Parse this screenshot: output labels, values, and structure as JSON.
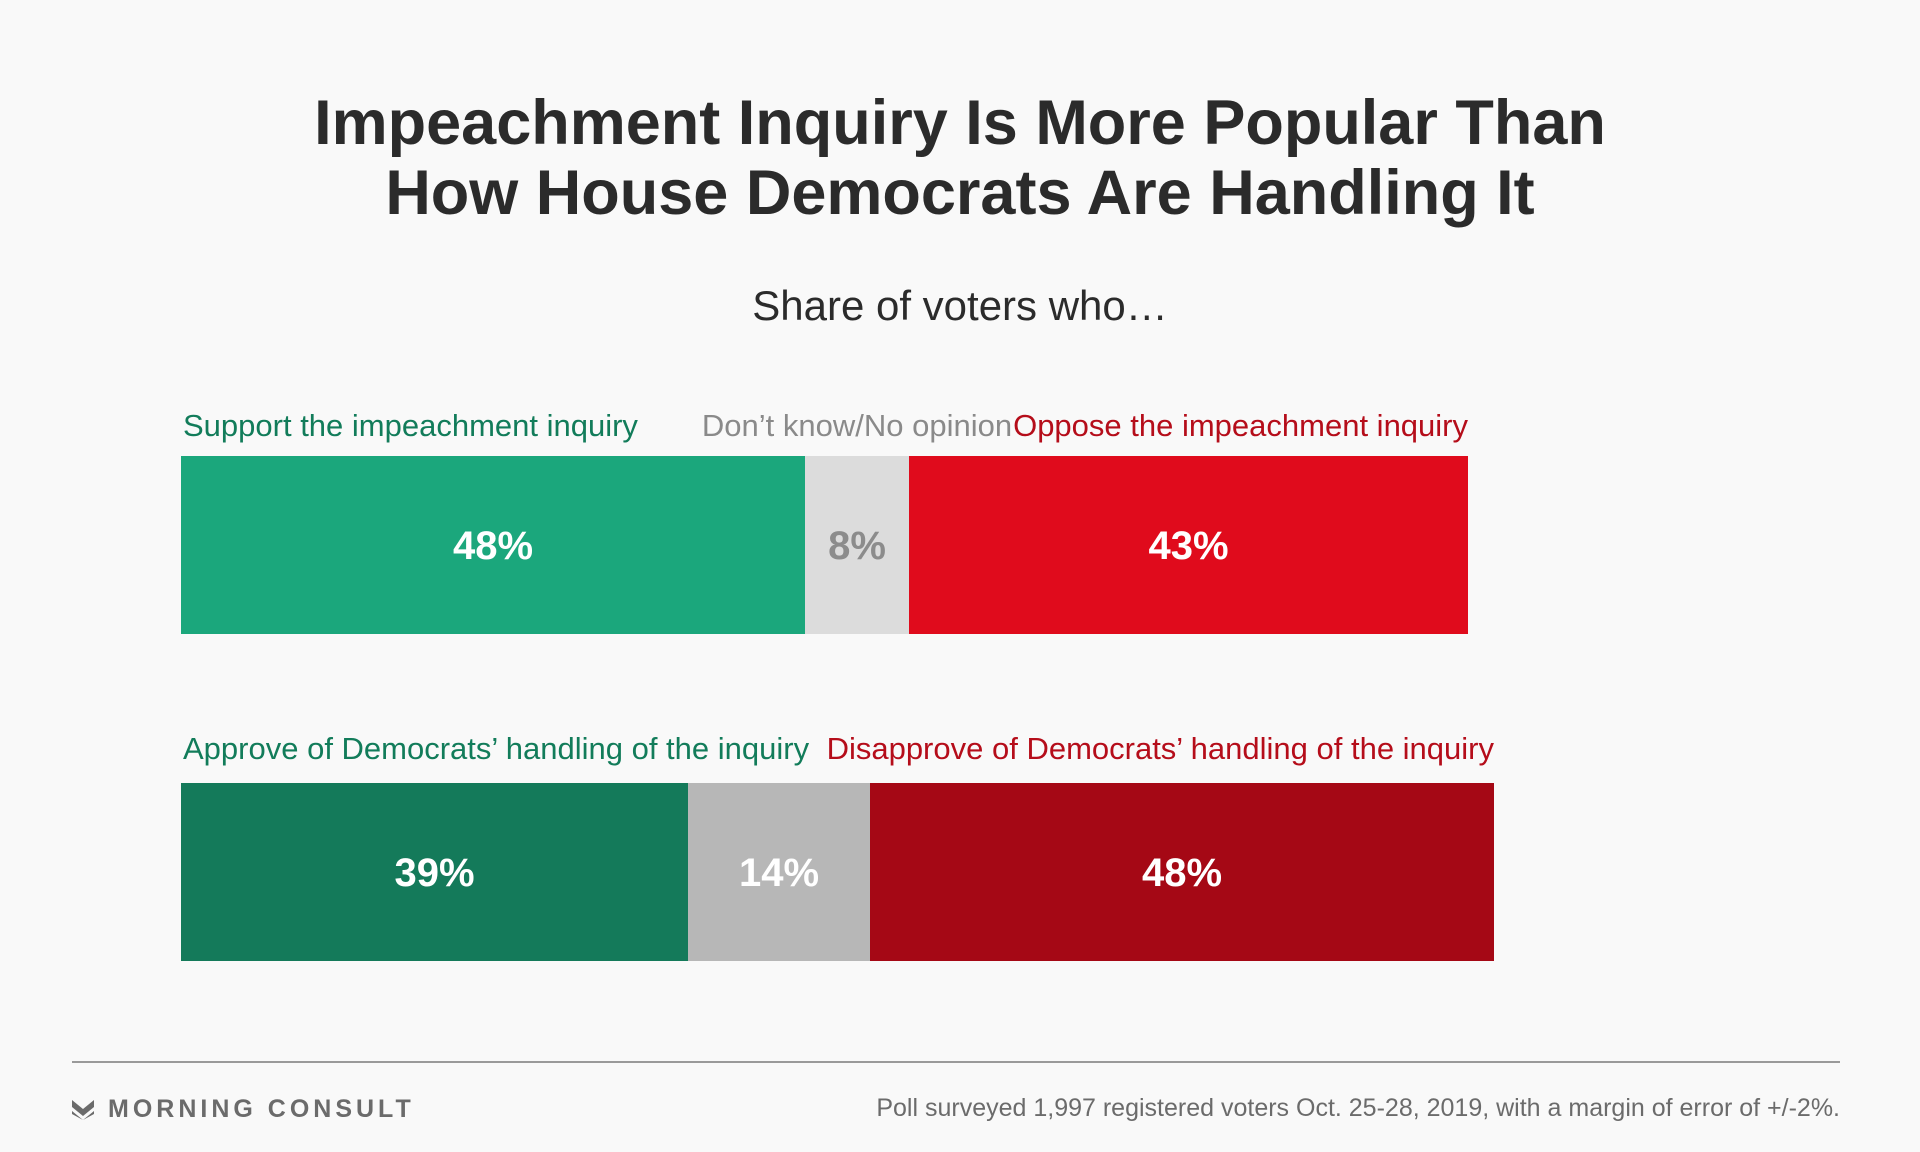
{
  "title_lines": [
    "Impeachment Inquiry Is More Popular Than",
    "How House Democrats Are Handling It"
  ],
  "subtitle": "Share of voters who…",
  "colors": {
    "support": "#1ba77c",
    "support_dk": "#147a5a",
    "dk_light": "#dcdcdc",
    "dk_dark": "#b7b7b7",
    "oppose": "#e00b1c",
    "oppose_dk": "#a50815",
    "label_green": "#127c5a",
    "label_red": "#b50d1a",
    "label_gray": "#8a8a8a",
    "dk_text_light": "#8c8c8c"
  },
  "chart_data": {
    "type": "bar",
    "orientation": "horizontal-stacked",
    "categories": [
      "Impeachment inquiry",
      "Democrats' handling of the inquiry"
    ],
    "series": [
      {
        "values": [
          48,
          39
        ],
        "value_labels": [
          "48%",
          "39%"
        ]
      },
      {
        "values": [
          8,
          14
        ],
        "value_labels": [
          "8%",
          "14%"
        ]
      },
      {
        "values": [
          43,
          48
        ],
        "value_labels": [
          "43%",
          "48%"
        ]
      }
    ],
    "bar_labels": [
      [
        "Support the impeachment inquiry",
        "Don’t know/No opinion",
        "Oppose the impeachment inquiry"
      ],
      [
        "Approve of Democrats’ handling of the inquiry",
        "",
        "Disapprove of Democrats’ handling of the inquiry"
      ]
    ]
  },
  "footer": {
    "logo": "MORNING CONSULT",
    "note": "Poll surveyed 1,997 registered voters Oct. 25-28, 2019, with a margin of error of +/-2%."
  }
}
